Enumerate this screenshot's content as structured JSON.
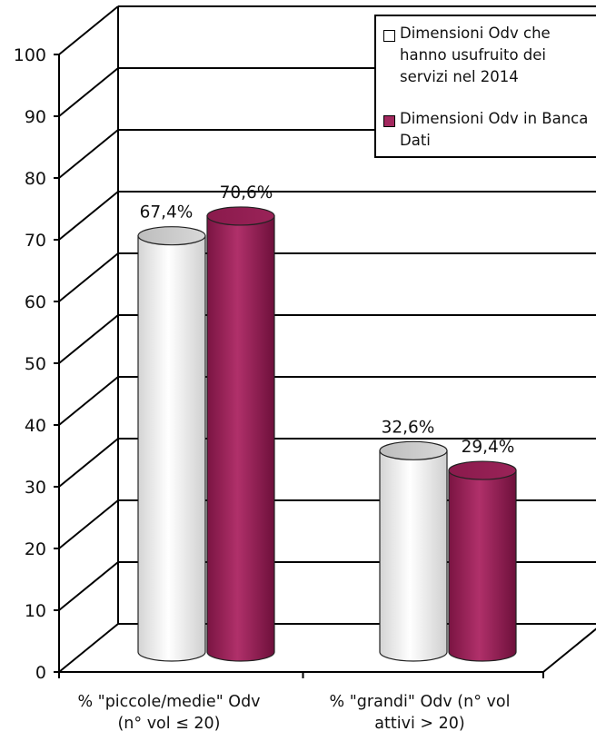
{
  "chart_data": {
    "type": "bar",
    "categories": [
      "% \"piccole/medie\" Odv\n(n° vol  ≤ 20)",
      "% \"grandi\" Odv (n° vol\nattivi > 20)"
    ],
    "series": [
      {
        "name": "Dimensioni Odv che hanno usufruito dei servizi nel 2014",
        "values": [
          67.4,
          32.6
        ],
        "color": "#ffffff",
        "top_color": "#c8c8c8"
      },
      {
        "name": "Dimensioni Odv in Banca Dati",
        "values": [
          70.6,
          29.4
        ],
        "color": "#a2285e",
        "top_color": "#8c1a4e"
      }
    ],
    "data_labels": [
      [
        "67,4%",
        "32,6%"
      ],
      [
        "70,6%",
        "29,4%"
      ]
    ],
    "y_ticks": [
      0,
      10,
      20,
      30,
      40,
      50,
      60,
      70,
      80,
      90,
      100
    ],
    "ylim": [
      0,
      100
    ],
    "grid": true,
    "legend_position": "top-right",
    "style": "3d-cylinder"
  },
  "legend": {
    "items": [
      {
        "label": "Dimensioni Odv che\nhanno usufruito dei\nservizi nel 2014"
      },
      {
        "label": "Dimensioni Odv in Banca\nDati"
      }
    ]
  }
}
